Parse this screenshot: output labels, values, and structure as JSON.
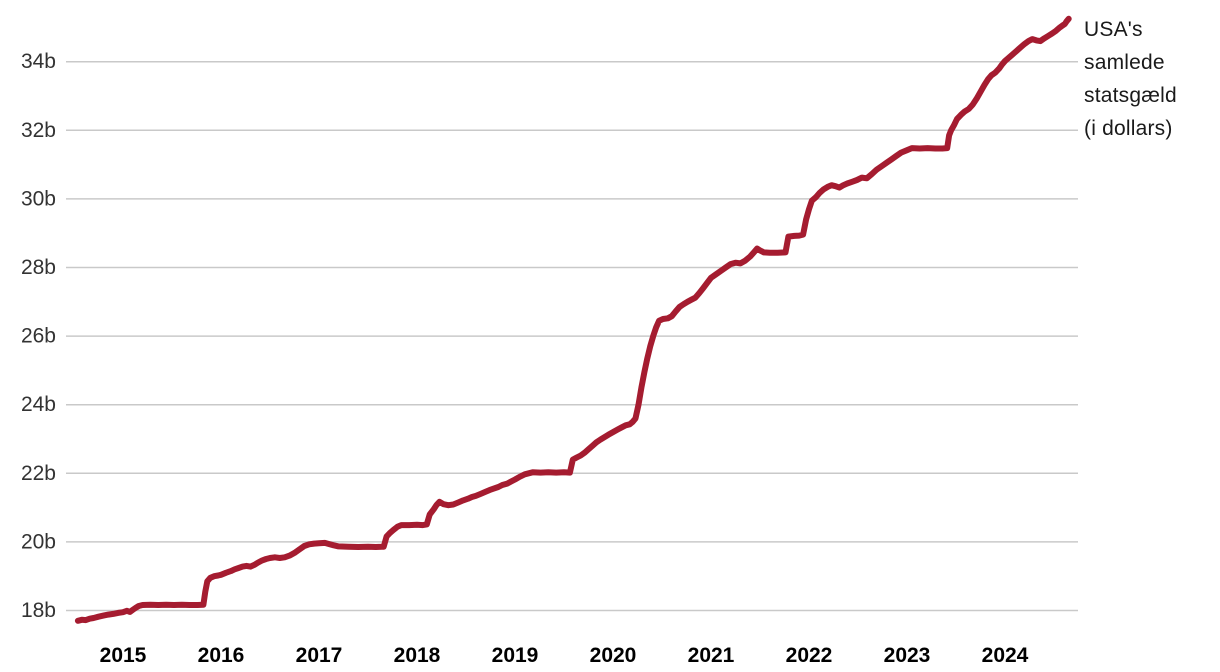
{
  "chart": {
    "annotation_label": "USA's samlede statsgæld (i dollars)",
    "colors": {
      "line": "#a51c30",
      "grid": "#c9c9c9",
      "y_tick_label": "#333333",
      "x_tick_label": "#000000",
      "annotation": "#1a1a1a",
      "background": "#ffffff"
    }
  },
  "chart_data": {
    "type": "line",
    "title": "USA's samlede statsgæld (i dollars)",
    "xlabel": "",
    "ylabel": "",
    "x_unit": "year (decimal)",
    "y_unit": "trillions of US dollars (Danish 'billioner', shown as 'b')",
    "ylim": [
      17.5,
      35.5
    ],
    "xlim": [
      2014.5,
      2024.75
    ],
    "grid": "horizontal-only",
    "legend_position": "annotation-right",
    "y_ticks": [
      {
        "value": 18,
        "label": "18b"
      },
      {
        "value": 20,
        "label": "20b"
      },
      {
        "value": 22,
        "label": "22b"
      },
      {
        "value": 24,
        "label": "24b"
      },
      {
        "value": 26,
        "label": "26b"
      },
      {
        "value": 28,
        "label": "28b"
      },
      {
        "value": 30,
        "label": "30b"
      },
      {
        "value": 32,
        "label": "32b"
      },
      {
        "value": 34,
        "label": "34b"
      }
    ],
    "x_ticks": [
      {
        "value": 2015,
        "label": "2015"
      },
      {
        "value": 2016,
        "label": "2016"
      },
      {
        "value": 2017,
        "label": "2017"
      },
      {
        "value": 2018,
        "label": "2018"
      },
      {
        "value": 2019,
        "label": "2019"
      },
      {
        "value": 2020,
        "label": "2020"
      },
      {
        "value": 2021,
        "label": "2021"
      },
      {
        "value": 2022,
        "label": "2022"
      },
      {
        "value": 2023,
        "label": "2023"
      },
      {
        "value": 2024,
        "label": "2024"
      }
    ],
    "series": [
      {
        "name": "USA's samlede statsgæld (i dollars)",
        "points": [
          [
            2014.54,
            17.7
          ],
          [
            2014.58,
            17.73
          ],
          [
            2014.62,
            17.72
          ],
          [
            2014.66,
            17.76
          ],
          [
            2014.7,
            17.78
          ],
          [
            2014.75,
            17.82
          ],
          [
            2014.8,
            17.85
          ],
          [
            2014.85,
            17.88
          ],
          [
            2014.9,
            17.9
          ],
          [
            2014.95,
            17.93
          ],
          [
            2015.0,
            17.95
          ],
          [
            2015.04,
            17.99
          ],
          [
            2015.07,
            17.96
          ],
          [
            2015.1,
            18.02
          ],
          [
            2015.13,
            18.08
          ],
          [
            2015.16,
            18.13
          ],
          [
            2015.2,
            18.16
          ],
          [
            2015.28,
            18.17
          ],
          [
            2015.36,
            18.16
          ],
          [
            2015.44,
            18.17
          ],
          [
            2015.52,
            18.16
          ],
          [
            2015.6,
            18.17
          ],
          [
            2015.68,
            18.16
          ],
          [
            2015.76,
            18.16
          ],
          [
            2015.82,
            18.17
          ],
          [
            2015.84,
            18.55
          ],
          [
            2015.86,
            18.85
          ],
          [
            2015.89,
            18.95
          ],
          [
            2015.93,
            19.0
          ],
          [
            2015.97,
            19.02
          ],
          [
            2016.0,
            19.04
          ],
          [
            2016.05,
            19.1
          ],
          [
            2016.1,
            19.15
          ],
          [
            2016.14,
            19.2
          ],
          [
            2016.18,
            19.24
          ],
          [
            2016.22,
            19.28
          ],
          [
            2016.26,
            19.3
          ],
          [
            2016.3,
            19.28
          ],
          [
            2016.34,
            19.33
          ],
          [
            2016.38,
            19.4
          ],
          [
            2016.42,
            19.46
          ],
          [
            2016.46,
            19.5
          ],
          [
            2016.5,
            19.53
          ],
          [
            2016.55,
            19.55
          ],
          [
            2016.6,
            19.53
          ],
          [
            2016.65,
            19.55
          ],
          [
            2016.7,
            19.6
          ],
          [
            2016.75,
            19.68
          ],
          [
            2016.8,
            19.78
          ],
          [
            2016.85,
            19.88
          ],
          [
            2016.9,
            19.93
          ],
          [
            2016.95,
            19.95
          ],
          [
            2017.0,
            19.96
          ],
          [
            2017.06,
            19.97
          ],
          [
            2017.1,
            19.94
          ],
          [
            2017.15,
            19.9
          ],
          [
            2017.2,
            19.87
          ],
          [
            2017.3,
            19.86
          ],
          [
            2017.4,
            19.85
          ],
          [
            2017.5,
            19.86
          ],
          [
            2017.58,
            19.85
          ],
          [
            2017.66,
            19.86
          ],
          [
            2017.69,
            20.16
          ],
          [
            2017.72,
            20.25
          ],
          [
            2017.76,
            20.35
          ],
          [
            2017.8,
            20.44
          ],
          [
            2017.84,
            20.49
          ],
          [
            2017.92,
            20.49
          ],
          [
            2018.0,
            20.5
          ],
          [
            2018.06,
            20.49
          ],
          [
            2018.1,
            20.51
          ],
          [
            2018.13,
            20.8
          ],
          [
            2018.17,
            20.95
          ],
          [
            2018.2,
            21.08
          ],
          [
            2018.23,
            21.17
          ],
          [
            2018.27,
            21.1
          ],
          [
            2018.32,
            21.07
          ],
          [
            2018.37,
            21.09
          ],
          [
            2018.42,
            21.15
          ],
          [
            2018.47,
            21.21
          ],
          [
            2018.52,
            21.26
          ],
          [
            2018.56,
            21.31
          ],
          [
            2018.6,
            21.34
          ],
          [
            2018.65,
            21.4
          ],
          [
            2018.7,
            21.46
          ],
          [
            2018.74,
            21.51
          ],
          [
            2018.78,
            21.55
          ],
          [
            2018.83,
            21.6
          ],
          [
            2018.87,
            21.66
          ],
          [
            2018.92,
            21.7
          ],
          [
            2018.96,
            21.76
          ],
          [
            2019.0,
            21.82
          ],
          [
            2019.05,
            21.9
          ],
          [
            2019.1,
            21.97
          ],
          [
            2019.14,
            22.0
          ],
          [
            2019.18,
            22.03
          ],
          [
            2019.26,
            22.02
          ],
          [
            2019.34,
            22.03
          ],
          [
            2019.42,
            22.02
          ],
          [
            2019.5,
            22.03
          ],
          [
            2019.56,
            22.02
          ],
          [
            2019.59,
            22.4
          ],
          [
            2019.63,
            22.46
          ],
          [
            2019.67,
            22.52
          ],
          [
            2019.71,
            22.6
          ],
          [
            2019.75,
            22.7
          ],
          [
            2019.79,
            22.8
          ],
          [
            2019.83,
            22.9
          ],
          [
            2019.87,
            22.98
          ],
          [
            2019.91,
            23.05
          ],
          [
            2019.95,
            23.12
          ],
          [
            2020.0,
            23.2
          ],
          [
            2020.05,
            23.28
          ],
          [
            2020.09,
            23.34
          ],
          [
            2020.13,
            23.4
          ],
          [
            2020.17,
            23.43
          ],
          [
            2020.2,
            23.5
          ],
          [
            2020.23,
            23.6
          ],
          [
            2020.26,
            24.0
          ],
          [
            2020.29,
            24.5
          ],
          [
            2020.32,
            24.95
          ],
          [
            2020.35,
            25.35
          ],
          [
            2020.38,
            25.7
          ],
          [
            2020.41,
            26.0
          ],
          [
            2020.44,
            26.25
          ],
          [
            2020.47,
            26.45
          ],
          [
            2020.51,
            26.5
          ],
          [
            2020.56,
            26.52
          ],
          [
            2020.6,
            26.58
          ],
          [
            2020.64,
            26.72
          ],
          [
            2020.68,
            26.85
          ],
          [
            2020.72,
            26.93
          ],
          [
            2020.76,
            27.0
          ],
          [
            2020.8,
            27.06
          ],
          [
            2020.84,
            27.12
          ],
          [
            2020.88,
            27.25
          ],
          [
            2020.92,
            27.4
          ],
          [
            2020.96,
            27.55
          ],
          [
            2021.0,
            27.7
          ],
          [
            2021.05,
            27.8
          ],
          [
            2021.1,
            27.9
          ],
          [
            2021.15,
            28.0
          ],
          [
            2021.2,
            28.1
          ],
          [
            2021.25,
            28.14
          ],
          [
            2021.3,
            28.12
          ],
          [
            2021.35,
            28.2
          ],
          [
            2021.4,
            28.32
          ],
          [
            2021.44,
            28.45
          ],
          [
            2021.47,
            28.55
          ],
          [
            2021.5,
            28.5
          ],
          [
            2021.54,
            28.44
          ],
          [
            2021.6,
            28.43
          ],
          [
            2021.68,
            28.43
          ],
          [
            2021.76,
            28.44
          ],
          [
            2021.79,
            28.9
          ],
          [
            2021.85,
            28.92
          ],
          [
            2021.9,
            28.93
          ],
          [
            2021.94,
            28.96
          ],
          [
            2021.97,
            29.4
          ],
          [
            2022.0,
            29.7
          ],
          [
            2022.03,
            29.95
          ],
          [
            2022.07,
            30.05
          ],
          [
            2022.11,
            30.18
          ],
          [
            2022.15,
            30.28
          ],
          [
            2022.19,
            30.35
          ],
          [
            2022.23,
            30.4
          ],
          [
            2022.27,
            30.37
          ],
          [
            2022.31,
            30.33
          ],
          [
            2022.35,
            30.4
          ],
          [
            2022.39,
            30.45
          ],
          [
            2022.44,
            30.5
          ],
          [
            2022.49,
            30.55
          ],
          [
            2022.54,
            30.62
          ],
          [
            2022.59,
            30.6
          ],
          [
            2022.64,
            30.72
          ],
          [
            2022.69,
            30.85
          ],
          [
            2022.74,
            30.95
          ],
          [
            2022.79,
            31.05
          ],
          [
            2022.84,
            31.15
          ],
          [
            2022.89,
            31.25
          ],
          [
            2022.94,
            31.35
          ],
          [
            2023.0,
            31.42
          ],
          [
            2023.05,
            31.48
          ],
          [
            2023.13,
            31.47
          ],
          [
            2023.21,
            31.48
          ],
          [
            2023.29,
            31.47
          ],
          [
            2023.36,
            31.47
          ],
          [
            2023.41,
            31.48
          ],
          [
            2023.43,
            31.85
          ],
          [
            2023.45,
            32.0
          ],
          [
            2023.48,
            32.15
          ],
          [
            2023.51,
            32.33
          ],
          [
            2023.55,
            32.45
          ],
          [
            2023.59,
            32.55
          ],
          [
            2023.63,
            32.62
          ],
          [
            2023.67,
            32.75
          ],
          [
            2023.71,
            32.92
          ],
          [
            2023.75,
            33.12
          ],
          [
            2023.79,
            33.32
          ],
          [
            2023.83,
            33.5
          ],
          [
            2023.86,
            33.6
          ],
          [
            2023.9,
            33.68
          ],
          [
            2023.94,
            33.8
          ],
          [
            2023.97,
            33.92
          ],
          [
            2024.0,
            34.02
          ],
          [
            2024.04,
            34.12
          ],
          [
            2024.08,
            34.22
          ],
          [
            2024.12,
            34.32
          ],
          [
            2024.16,
            34.42
          ],
          [
            2024.2,
            34.52
          ],
          [
            2024.24,
            34.6
          ],
          [
            2024.28,
            34.66
          ],
          [
            2024.32,
            34.62
          ],
          [
            2024.36,
            34.6
          ],
          [
            2024.4,
            34.68
          ],
          [
            2024.44,
            34.75
          ],
          [
            2024.48,
            34.82
          ],
          [
            2024.52,
            34.9
          ],
          [
            2024.56,
            35.0
          ],
          [
            2024.59,
            35.06
          ],
          [
            2024.61,
            35.1
          ],
          [
            2024.63,
            35.18
          ],
          [
            2024.65,
            35.25
          ]
        ]
      }
    ]
  }
}
